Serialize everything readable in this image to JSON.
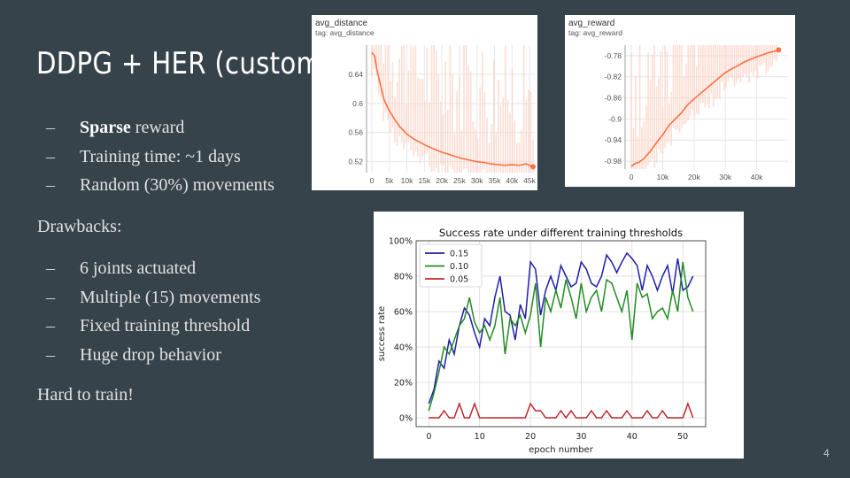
{
  "slide": {
    "title": "DDPG + HER (custom)",
    "bullets": [
      {
        "dash": "–",
        "bold": "Sparse",
        "text": " reward"
      },
      {
        "dash": "–",
        "bold": "",
        "text": "Training time: ~1 days"
      },
      {
        "dash": "–",
        "bold": "",
        "text": "Random (30%) movements"
      }
    ],
    "drawbacks_label": "Drawbacks:",
    "drawbacks": [
      {
        "dash": "–",
        "text": "6 joints actuated"
      },
      {
        "dash": "–",
        "text": "Multiple (15) movements"
      },
      {
        "dash": "–",
        "text": "Fixed training threshold"
      },
      {
        "dash": "–",
        "text": "Huge drop behavior"
      }
    ],
    "conclusion": "Hard to train!",
    "page_number": "4"
  },
  "colors": {
    "background": "#37434b",
    "tb_line": "#ff7043",
    "tb_raw": "#fbd3c6",
    "series_0.15": "#1f1fa8",
    "series_0.10": "#228b22",
    "series_0.05": "#c0272d"
  },
  "chart_data": [
    {
      "type": "line",
      "title": "avg_distance",
      "subtitle": "tag: avg_distance",
      "x_ticks": [
        "0",
        "5k",
        "10k",
        "15k",
        "20k",
        "25k",
        "30k",
        "35k",
        "40k",
        "45k"
      ],
      "y_ticks": [
        "0.52",
        "0.56",
        "0.6",
        "0.64"
      ],
      "xlim": [
        -1500,
        46500
      ],
      "ylim": [
        0.505,
        0.68
      ],
      "x": [
        0,
        800,
        1500,
        2500,
        3500,
        5000,
        6500,
        8000,
        10000,
        12000,
        14000,
        16000,
        18000,
        20000,
        22000,
        24000,
        26000,
        28000,
        30000,
        32000,
        34000,
        36000,
        38000,
        40000,
        42000,
        44000,
        46000
      ],
      "y": [
        0.67,
        0.665,
        0.645,
        0.625,
        0.605,
        0.59,
        0.578,
        0.568,
        0.558,
        0.551,
        0.546,
        0.541,
        0.537,
        0.533,
        0.53,
        0.527,
        0.524,
        0.522,
        0.52,
        0.519,
        0.517,
        0.516,
        0.515,
        0.516,
        0.515,
        0.517,
        0.513
      ]
    },
    {
      "type": "line",
      "title": "avg_reward",
      "subtitle": "tag: avg_reward",
      "x_ticks": [
        "0",
        "10k",
        "20k",
        "30k",
        "40k"
      ],
      "y_ticks": [
        "-0.98",
        "-0.94",
        "-0.9",
        "-0.86",
        "-0.82",
        "-0.78"
      ],
      "xlim": [
        -2000,
        50000
      ],
      "ylim": [
        -0.995,
        -0.76
      ],
      "x": [
        0,
        1000,
        2500,
        4000,
        6000,
        8000,
        10000,
        12000,
        14000,
        16000,
        18000,
        20000,
        22000,
        24000,
        26000,
        28000,
        30000,
        32000,
        34000,
        36000,
        38000,
        40000,
        42000,
        44000,
        46000,
        47000
      ],
      "y": [
        -0.99,
        -0.985,
        -0.982,
        -0.975,
        -0.962,
        -0.945,
        -0.93,
        -0.912,
        -0.9,
        -0.888,
        -0.873,
        -0.862,
        -0.852,
        -0.842,
        -0.832,
        -0.822,
        -0.812,
        -0.805,
        -0.799,
        -0.792,
        -0.787,
        -0.782,
        -0.778,
        -0.774,
        -0.771,
        -0.769
      ]
    },
    {
      "type": "line",
      "title": "Success rate under different training thresholds",
      "xlabel": "epoch number",
      "ylabel": "success rate",
      "x_ticks": [
        "0",
        "10",
        "20",
        "30",
        "40",
        "50"
      ],
      "y_ticks": [
        "0%",
        "20%",
        "40%",
        "60%",
        "80%",
        "100%"
      ],
      "xlim": [
        -2.5,
        54.5
      ],
      "ylim": [
        -0.05,
        1.0
      ],
      "grid": true,
      "legend": "top-left",
      "x": [
        0,
        1,
        2,
        3,
        4,
        5,
        6,
        7,
        8,
        9,
        10,
        11,
        12,
        13,
        14,
        15,
        16,
        17,
        18,
        19,
        20,
        21,
        22,
        23,
        24,
        25,
        26,
        27,
        28,
        29,
        30,
        31,
        32,
        33,
        34,
        35,
        36,
        37,
        38,
        39,
        40,
        41,
        42,
        43,
        44,
        45,
        46,
        47,
        48,
        49,
        50,
        51,
        52
      ],
      "series": [
        {
          "name": "0.15",
          "values": [
            0.08,
            0.16,
            0.32,
            0.28,
            0.44,
            0.36,
            0.52,
            0.62,
            0.58,
            0.48,
            0.4,
            0.56,
            0.52,
            0.68,
            0.8,
            0.6,
            0.58,
            0.44,
            0.64,
            0.56,
            0.88,
            0.84,
            0.58,
            0.72,
            0.8,
            0.72,
            0.86,
            0.8,
            0.74,
            0.76,
            0.88,
            0.84,
            0.76,
            0.74,
            0.8,
            0.92,
            0.88,
            0.82,
            0.88,
            0.93,
            0.9,
            0.86,
            0.72,
            0.86,
            0.8,
            0.72,
            0.8,
            0.86,
            0.7,
            0.9,
            0.72,
            0.74,
            0.8
          ]
        },
        {
          "name": "0.10",
          "values": [
            0.04,
            0.14,
            0.26,
            0.4,
            0.36,
            0.44,
            0.52,
            0.56,
            0.68,
            0.54,
            0.48,
            0.52,
            0.44,
            0.52,
            0.68,
            0.36,
            0.56,
            0.52,
            0.58,
            0.48,
            0.58,
            0.76,
            0.4,
            0.68,
            0.6,
            0.72,
            0.62,
            0.78,
            0.68,
            0.56,
            0.76,
            0.6,
            0.68,
            0.72,
            0.6,
            0.78,
            0.76,
            0.68,
            0.6,
            0.72,
            0.44,
            0.76,
            0.68,
            0.7,
            0.56,
            0.6,
            0.62,
            0.56,
            0.72,
            0.6,
            0.88,
            0.68,
            0.6
          ]
        },
        {
          "name": "0.05",
          "values": [
            0.0,
            0.0,
            0.0,
            0.04,
            0.0,
            0.0,
            0.08,
            0.0,
            0.0,
            0.08,
            0.0,
            0.0,
            0.0,
            0.0,
            0.0,
            0.0,
            0.0,
            0.0,
            0.0,
            0.0,
            0.08,
            0.04,
            0.04,
            0.0,
            0.0,
            0.0,
            0.04,
            0.0,
            0.04,
            0.0,
            0.0,
            0.0,
            0.04,
            0.0,
            0.0,
            0.04,
            0.0,
            0.0,
            0.0,
            0.04,
            0.0,
            0.0,
            0.0,
            0.04,
            0.0,
            0.0,
            0.04,
            0.0,
            0.0,
            0.0,
            0.0,
            0.08,
            0.0
          ]
        }
      ]
    }
  ]
}
